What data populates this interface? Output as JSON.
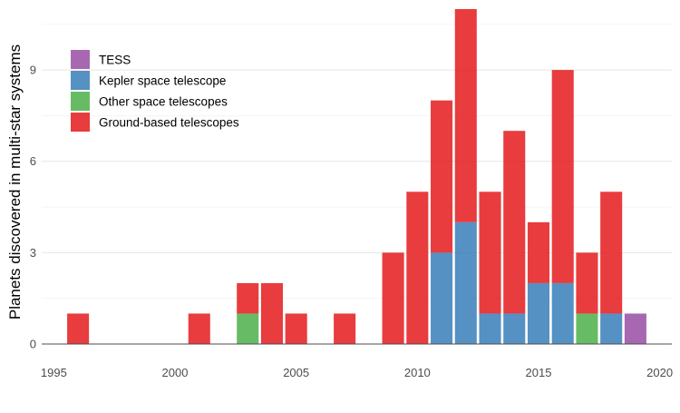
{
  "chart_data": {
    "type": "bar",
    "stacked": true,
    "ylabel": "Planets discovered in multi-star systems",
    "xlabel": "",
    "xlim": [
      1994.5,
      2020.5
    ],
    "ylim": [
      0,
      11
    ],
    "x_ticks": [
      1995,
      2000,
      2005,
      2010,
      2015,
      2020
    ],
    "y_ticks": [
      0,
      3,
      6,
      9
    ],
    "grid": true,
    "legend_position": "top-left",
    "series": [
      {
        "name": "TESS",
        "color": "#984ea3",
        "points": [
          [
            2019,
            1
          ]
        ]
      },
      {
        "name": "Kepler space telescope",
        "color": "#377eb8",
        "points": [
          [
            2011,
            3
          ],
          [
            2012,
            4
          ],
          [
            2013,
            1
          ],
          [
            2014,
            1
          ],
          [
            2015,
            2
          ],
          [
            2016,
            2
          ],
          [
            2018,
            1
          ]
        ]
      },
      {
        "name": "Other space telescopes",
        "color": "#4daf4a",
        "points": [
          [
            2003,
            1
          ],
          [
            2017,
            1
          ]
        ]
      },
      {
        "name": "Ground-based telescopes",
        "color": "#e41a1c",
        "points": [
          [
            1996,
            1
          ],
          [
            2001,
            1
          ],
          [
            2003,
            1
          ],
          [
            2004,
            2
          ],
          [
            2005,
            1
          ],
          [
            2007,
            1
          ],
          [
            2009,
            3
          ],
          [
            2010,
            5
          ],
          [
            2011,
            5
          ],
          [
            2012,
            7
          ],
          [
            2013,
            4
          ],
          [
            2014,
            6
          ],
          [
            2015,
            2
          ],
          [
            2016,
            7
          ],
          [
            2017,
            2
          ],
          [
            2018,
            4
          ]
        ]
      }
    ],
    "stack_order_bottom_to_top": [
      "TESS",
      "Kepler space telescope",
      "Other space telescopes",
      "Ground-based telescopes"
    ]
  }
}
